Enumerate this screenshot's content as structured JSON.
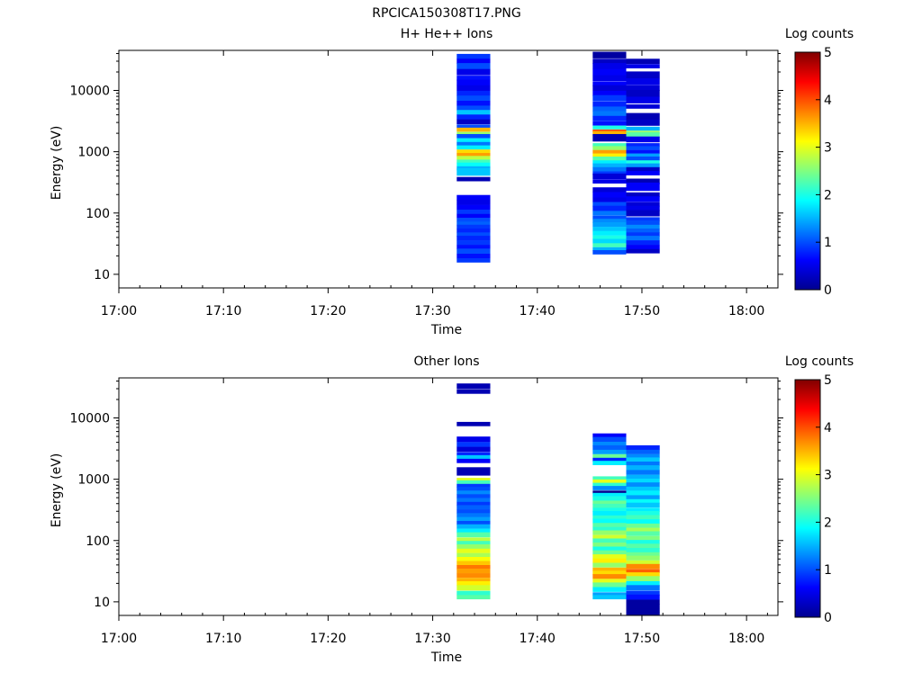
{
  "figure_title": "RPCICA150308T17.PNG",
  "colormap": [
    "#00008f",
    "#0000ff",
    "#0080ff",
    "#00ffff",
    "#80ff80",
    "#ffff00",
    "#ff8000",
    "#ff0000",
    "#800000"
  ],
  "chart_data": [
    {
      "type": "heatmap",
      "title": "H+ He++ Ions",
      "xlabel": "Time",
      "ylabel": "Energy (eV)",
      "colorbar_label": "Log counts",
      "x_ticks": [
        "17:00",
        "17:10",
        "17:20",
        "17:30",
        "17:40",
        "17:50",
        "18:00"
      ],
      "xlim": [
        "17:00",
        "18:03"
      ],
      "y_scale": "log",
      "ylim": [
        6,
        45000
      ],
      "y_ticks": [
        10,
        100,
        1000,
        10000
      ],
      "y_tick_labels": [
        "10",
        "100",
        "1000",
        "10000"
      ],
      "colorbar_range": [
        0,
        5
      ],
      "colorbar_ticks": [
        "0",
        "1",
        "2",
        "3",
        "4",
        "5"
      ],
      "columns": [
        {
          "t_start": "17:32.3",
          "t_end": "17:35.5",
          "bins": [
            [
              36000,
              0.9
            ],
            [
              30000,
              0.6
            ],
            [
              25000,
              1.0
            ],
            [
              20000,
              0.5
            ],
            [
              16000,
              0.7
            ],
            [
              13500,
              0.6
            ],
            [
              11000,
              0.5
            ],
            [
              9000,
              0.8
            ],
            [
              7500,
              1.0
            ],
            [
              6200,
              0.7
            ],
            [
              5200,
              1.0
            ],
            [
              4400,
              1.6
            ],
            [
              3700,
              0.8
            ],
            [
              3100,
              0.3
            ],
            [
              2600,
              1.0
            ],
            [
              2300,
              3.5
            ],
            [
              2000,
              2.6
            ],
            [
              1800,
              1.0
            ],
            [
              1550,
              1.8
            ],
            [
              1350,
              1.2
            ],
            [
              1180,
              1.8
            ],
            [
              1020,
              3.3
            ],
            [
              900,
              3.6
            ],
            [
              800,
              2.8
            ],
            [
              700,
              2.2
            ],
            [
              620,
              1.9
            ],
            [
              540,
              1.5
            ],
            [
              470,
              1.6
            ],
            [
              360,
              0.2
            ],
            [
              180,
              0.6
            ],
            [
              150,
              0.5
            ],
            [
              125,
              0.6
            ],
            [
              105,
              0.9
            ],
            [
              90,
              0.6
            ],
            [
              78,
              1.0
            ],
            [
              68,
              1.1
            ],
            [
              60,
              0.9
            ],
            [
              52,
              0.8
            ],
            [
              45,
              1.0
            ],
            [
              39,
              0.8
            ],
            [
              33,
              0.9
            ],
            [
              28,
              0.7
            ],
            [
              24,
              1.0
            ],
            [
              20,
              0.7
            ],
            [
              17,
              0.9
            ]
          ]
        },
        {
          "t_start": "17:45.3",
          "t_end": "17:48.5",
          "bins": [
            [
              38000,
              0.1
            ],
            [
              30000,
              0.3
            ],
            [
              25000,
              0.5
            ],
            [
              20000,
              0.6
            ],
            [
              16000,
              0.5
            ],
            [
              13000,
              0.6
            ],
            [
              11000,
              0.4
            ],
            [
              9000,
              0.6
            ],
            [
              7500,
              0.9
            ],
            [
              6000,
              0.8
            ],
            [
              5000,
              1.1
            ],
            [
              4200,
              1.2
            ],
            [
              3500,
              0.8
            ],
            [
              2900,
              0.7
            ],
            [
              2500,
              2.0
            ],
            [
              2200,
              4.0
            ],
            [
              2000,
              3.5
            ],
            [
              1700,
              0.2
            ],
            [
              1300,
              2.2
            ],
            [
              1150,
              2.6
            ],
            [
              1000,
              3.6
            ],
            [
              880,
              3.2
            ],
            [
              780,
              2.3
            ],
            [
              680,
              1.8
            ],
            [
              600,
              1.5
            ],
            [
              520,
              1.2
            ],
            [
              450,
              0.9
            ],
            [
              400,
              0.4
            ],
            [
              330,
              0.5
            ],
            [
              240,
              0.4
            ],
            [
              200,
              0.6
            ],
            [
              165,
              0.5
            ],
            [
              140,
              1.0
            ],
            [
              120,
              0.8
            ],
            [
              100,
              1.2
            ],
            [
              85,
              1.0
            ],
            [
              75,
              1.3
            ],
            [
              65,
              1.4
            ],
            [
              55,
              1.6
            ],
            [
              47,
              1.8
            ],
            [
              40,
              2.0
            ],
            [
              35,
              1.7
            ],
            [
              30,
              2.2
            ],
            [
              26,
              1.5
            ],
            [
              23,
              1.0
            ]
          ]
        },
        {
          "t_start": "17:48.5",
          "t_end": "17:51.7",
          "bins": [
            [
              30000,
              0.2
            ],
            [
              25000,
              0.5
            ],
            [
              18000,
              0.3
            ],
            [
              14000,
              0.5
            ],
            [
              11000,
              0.4
            ],
            [
              9000,
              0.3
            ],
            [
              7000,
              0.5
            ],
            [
              5500,
              0.4
            ],
            [
              3800,
              0.2
            ],
            [
              3000,
              0.3
            ],
            [
              2400,
              1.5
            ],
            [
              2100,
              2.6
            ],
            [
              1900,
              2.3
            ],
            [
              1600,
              0.5
            ],
            [
              1300,
              0.8
            ],
            [
              1150,
              1.0
            ],
            [
              1000,
              0.7
            ],
            [
              880,
              1.4
            ],
            [
              780,
              1.0
            ],
            [
              680,
              2.0
            ],
            [
              600,
              1.4
            ],
            [
              520,
              0.3
            ],
            [
              450,
              0.6
            ],
            [
              330,
              0.2
            ],
            [
              270,
              0.6
            ],
            [
              200,
              0.3
            ],
            [
              170,
              0.6
            ],
            [
              140,
              0.4
            ],
            [
              120,
              0.5
            ],
            [
              100,
              0.3
            ],
            [
              80,
              0.9
            ],
            [
              70,
              1.0
            ],
            [
              60,
              1.3
            ],
            [
              52,
              1.1
            ],
            [
              45,
              0.9
            ],
            [
              39,
              1.2
            ],
            [
              33,
              0.8
            ],
            [
              28,
              0.6
            ],
            [
              24,
              0.3
            ]
          ]
        }
      ]
    },
    {
      "type": "heatmap",
      "title": "Other Ions",
      "xlabel": "Time",
      "ylabel": "Energy (eV)",
      "colorbar_label": "Log counts",
      "x_ticks": [
        "17:00",
        "17:10",
        "17:20",
        "17:30",
        "17:40",
        "17:50",
        "18:00"
      ],
      "xlim": [
        "17:00",
        "18:03"
      ],
      "y_scale": "log",
      "ylim": [
        6,
        45000
      ],
      "y_ticks": [
        10,
        100,
        1000,
        10000
      ],
      "y_tick_labels": [
        "10",
        "100",
        "1000",
        "10000"
      ],
      "colorbar_range": [
        0,
        5
      ],
      "colorbar_ticks": [
        "0",
        "1",
        "2",
        "3",
        "4",
        "5"
      ],
      "columns": [
        {
          "t_start": "17:32.3",
          "t_end": "17:35.5",
          "bins": [
            [
              33000,
              0.2
            ],
            [
              27000,
              0.2
            ],
            [
              8000,
              0.2
            ],
            [
              4500,
              0.5
            ],
            [
              3700,
              0.9
            ],
            [
              3100,
              0.4
            ],
            [
              2600,
              0.8
            ],
            [
              2300,
              1.6
            ],
            [
              2000,
              0.6
            ],
            [
              1350,
              0.2
            ],
            [
              1000,
              3.0
            ],
            [
              900,
              2.2
            ],
            [
              790,
              0.9
            ],
            [
              700,
              1.0
            ],
            [
              610,
              1.3
            ],
            [
              530,
              1.0
            ],
            [
              460,
              1.2
            ],
            [
              400,
              0.9
            ],
            [
              350,
              1.1
            ],
            [
              300,
              1.0
            ],
            [
              260,
              1.2
            ],
            [
              225,
              1.4
            ],
            [
              195,
              1.0
            ],
            [
              170,
              1.5
            ],
            [
              145,
              1.8
            ],
            [
              125,
              2.3
            ],
            [
              105,
              2.8
            ],
            [
              92,
              2.2
            ],
            [
              80,
              2.6
            ],
            [
              68,
              3.0
            ],
            [
              58,
              2.7
            ],
            [
              50,
              3.1
            ],
            [
              43,
              3.4
            ],
            [
              37,
              3.8
            ],
            [
              32,
              3.6
            ],
            [
              27,
              3.7
            ],
            [
              23,
              3.5
            ],
            [
              20,
              3.2
            ],
            [
              17,
              2.9
            ],
            [
              14,
              2.1
            ],
            [
              12,
              2.3
            ]
          ]
        },
        {
          "t_start": "17:45.3",
          "t_end": "17:48.5",
          "bins": [
            [
              5200,
              0.6
            ],
            [
              4500,
              1.0
            ],
            [
              3800,
              1.3
            ],
            [
              3300,
              1.1
            ],
            [
              2800,
              1.4
            ],
            [
              2400,
              2.4
            ],
            [
              2100,
              0.8
            ],
            [
              1850,
              1.8
            ],
            [
              1050,
              2.2
            ],
            [
              930,
              3.0
            ],
            [
              820,
              2.1
            ],
            [
              720,
              1.3
            ],
            [
              620,
              0.0
            ],
            [
              560,
              1.8
            ],
            [
              490,
              2.0
            ],
            [
              420,
              2.4
            ],
            [
              370,
              2.2
            ],
            [
              320,
              2.0
            ],
            [
              280,
              1.8
            ],
            [
              240,
              2.1
            ],
            [
              210,
              1.9
            ],
            [
              180,
              2.3
            ],
            [
              155,
              2.1
            ],
            [
              135,
              2.6
            ],
            [
              115,
              2.9
            ],
            [
              100,
              2.2
            ],
            [
              86,
              2.5
            ],
            [
              74,
              2.0
            ],
            [
              64,
              2.4
            ],
            [
              55,
              3.0
            ],
            [
              47,
              3.2
            ],
            [
              40,
              2.6
            ],
            [
              34,
              3.5
            ],
            [
              30,
              3.3
            ],
            [
              26,
              3.7
            ],
            [
              22,
              3.0
            ],
            [
              19,
              2.4
            ],
            [
              16,
              1.8
            ],
            [
              13.5,
              1.4
            ],
            [
              12,
              1.6
            ]
          ]
        },
        {
          "t_start": "17:48.5",
          "t_end": "17:51.7",
          "bins": [
            [
              3300,
              0.8
            ],
            [
              2800,
              1.1
            ],
            [
              2400,
              1.3
            ],
            [
              2100,
              1.6
            ],
            [
              1800,
              1.2
            ],
            [
              1550,
              1.5
            ],
            [
              1300,
              1.2
            ],
            [
              1100,
              1.5
            ],
            [
              950,
              1.7
            ],
            [
              820,
              1.3
            ],
            [
              700,
              1.6
            ],
            [
              600,
              1.8
            ],
            [
              510,
              1.4
            ],
            [
              440,
              1.9
            ],
            [
              380,
              1.6
            ],
            [
              320,
              1.8
            ],
            [
              280,
              2.0
            ],
            [
              240,
              2.2
            ],
            [
              205,
              1.9
            ],
            [
              175,
              2.4
            ],
            [
              150,
              2.7
            ],
            [
              130,
              2.3
            ],
            [
              110,
              2.5
            ],
            [
              95,
              2.0
            ],
            [
              82,
              2.3
            ],
            [
              70,
              2.1
            ],
            [
              60,
              2.4
            ],
            [
              52,
              2.6
            ],
            [
              44,
              2.9
            ],
            [
              38,
              3.7
            ],
            [
              32,
              3.9
            ],
            [
              28,
              3.3
            ],
            [
              24,
              2.6
            ],
            [
              20,
              1.8
            ],
            [
              17,
              1.2
            ],
            [
              14,
              0.9
            ],
            [
              12,
              0.7
            ],
            [
              10,
              0.1
            ],
            [
              8.5,
              0.1
            ],
            [
              7.2,
              0.1
            ],
            [
              6.2,
              0.1
            ]
          ]
        }
      ]
    }
  ]
}
